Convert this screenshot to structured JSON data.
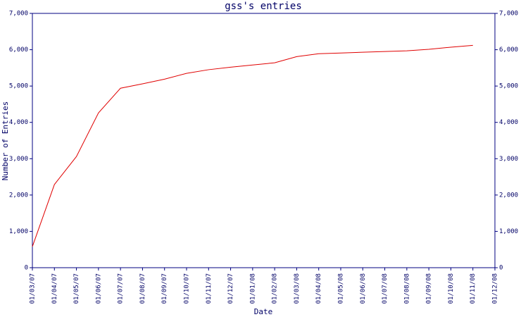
{
  "chart_data": {
    "type": "line",
    "title": "gss's entries",
    "xlabel": "Date",
    "ylabel": "Number of Entries",
    "categories": [
      "01/03/07",
      "01/04/07",
      "01/05/07",
      "01/06/07",
      "01/07/07",
      "01/08/07",
      "01/09/07",
      "01/10/07",
      "01/11/07",
      "01/12/07",
      "01/01/08",
      "01/02/08",
      "01/03/08",
      "01/04/08",
      "01/05/08",
      "01/06/08",
      "01/07/08",
      "01/08/08",
      "01/09/08",
      "01/10/08",
      "01/11/08",
      "01/12/08"
    ],
    "series": [
      {
        "name": "entries",
        "color": "#e00000",
        "values": [
          580,
          2290,
          3060,
          4260,
          4940,
          5060,
          5190,
          5350,
          5450,
          5520,
          5580,
          5640,
          5810,
          5890,
          5910,
          5930,
          5950,
          5970,
          6010,
          6070,
          6120,
          null
        ]
      }
    ],
    "ylim": [
      0,
      7000
    ],
    "yticks": [
      0,
      {
        "value": 1000,
        "label": "1,000"
      },
      {
        "value": 2000,
        "label": "2,000"
      },
      {
        "value": 3000,
        "label": "3,000"
      },
      {
        "value": 4000,
        "label": "4,000"
      },
      {
        "value": 5000,
        "label": "5,000"
      },
      {
        "value": 6000,
        "label": "6,000"
      },
      {
        "value": 7000,
        "label": "7,000"
      }
    ],
    "axis_color": "#000080",
    "grid": false
  }
}
